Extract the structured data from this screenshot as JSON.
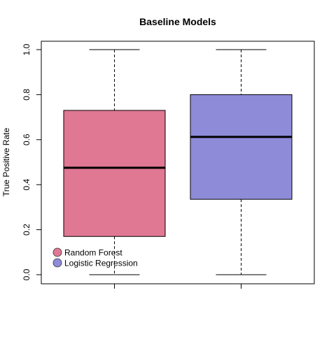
{
  "chart_data": {
    "type": "boxplot",
    "title": "Baseline Models",
    "xlabel": "",
    "ylabel": "True Positive Rate",
    "ylim": [
      0,
      1
    ],
    "yticks": [
      "0.0",
      "0.2",
      "0.4",
      "0.6",
      "0.8",
      "1.0"
    ],
    "grid": false,
    "legend_position": "bottom-left",
    "series": [
      {
        "name": "Random Forest",
        "color": "#e07793",
        "min": 0.0,
        "q1": 0.17,
        "median": 0.475,
        "q3": 0.73,
        "max": 1.0
      },
      {
        "name": "Logistic Regression",
        "color": "#8e8cd9",
        "min": 0.0,
        "q1": 0.335,
        "median": 0.612,
        "q3": 0.8,
        "max": 1.0
      }
    ]
  }
}
